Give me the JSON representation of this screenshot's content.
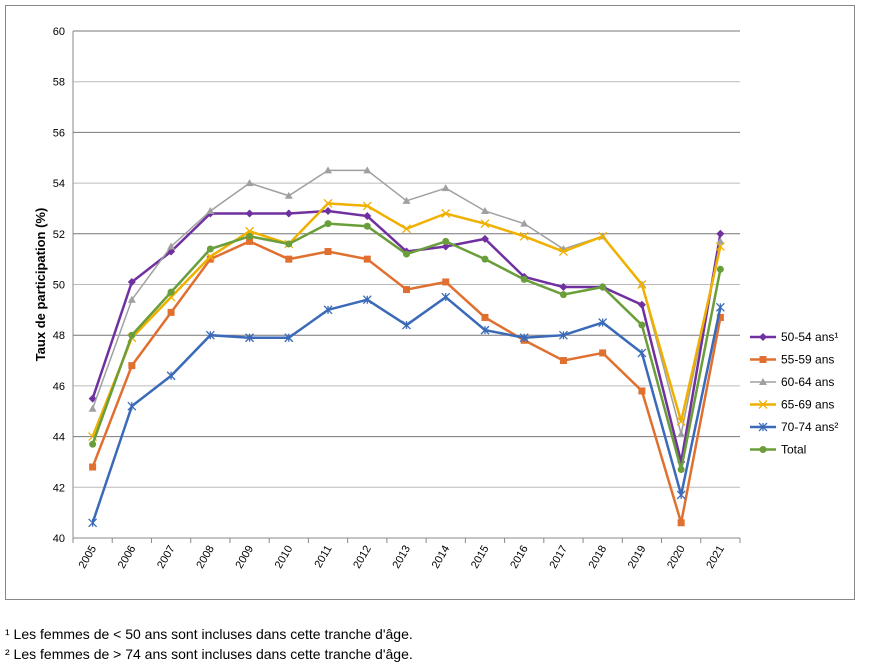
{
  "chart_data": {
    "type": "line",
    "title": "",
    "xlabel": "",
    "ylabel": "Taux de participation (%)",
    "ylim": [
      40,
      60
    ],
    "ytick_step": 2,
    "grid": "horizontal",
    "legend_position": "right",
    "categories": [
      "2005",
      "2006",
      "2007",
      "2008",
      "2009",
      "2010",
      "2011",
      "2012",
      "2013",
      "2014",
      "2015",
      "2016",
      "2017",
      "2018",
      "2019",
      "2020",
      "2021"
    ],
    "series": [
      {
        "name": "50-54 ans¹",
        "color": "#7030a0",
        "marker": "diamond",
        "values": [
          45.5,
          50.1,
          51.3,
          52.8,
          52.8,
          52.8,
          52.9,
          52.7,
          51.3,
          51.5,
          51.8,
          50.3,
          49.9,
          49.9,
          49.2,
          43.0,
          52.0
        ]
      },
      {
        "name": "55-59 ans",
        "color": "#e07030",
        "marker": "square",
        "values": [
          42.8,
          46.8,
          48.9,
          51.0,
          51.7,
          51.0,
          51.3,
          51.0,
          49.8,
          50.1,
          48.7,
          47.8,
          47.0,
          47.3,
          45.8,
          40.6,
          48.7
        ]
      },
      {
        "name": "60-64 ans",
        "color": "#a0a0a0",
        "marker": "triangle",
        "values": [
          45.1,
          49.4,
          51.5,
          52.9,
          54.0,
          53.5,
          54.5,
          54.5,
          53.3,
          53.8,
          52.9,
          52.4,
          51.4,
          51.9,
          50.0,
          44.1,
          51.7
        ]
      },
      {
        "name": "65-69 ans",
        "color": "#f0b000",
        "marker": "x",
        "values": [
          44.0,
          47.9,
          49.5,
          51.1,
          52.1,
          51.6,
          53.2,
          53.1,
          52.2,
          52.8,
          52.4,
          51.9,
          51.3,
          51.9,
          50.0,
          44.6,
          51.5
        ]
      },
      {
        "name": "70-74 ans²",
        "color": "#3a6ab8",
        "marker": "star",
        "values": [
          40.6,
          45.2,
          46.4,
          48.0,
          47.9,
          47.9,
          49.0,
          49.4,
          48.4,
          49.5,
          48.2,
          47.9,
          48.0,
          48.5,
          47.3,
          41.7,
          49.1
        ]
      },
      {
        "name": "Total",
        "color": "#6a9e3a",
        "marker": "circle",
        "values": [
          43.7,
          48.0,
          49.7,
          51.4,
          51.9,
          51.6,
          52.4,
          52.3,
          51.2,
          51.7,
          51.0,
          50.2,
          49.6,
          49.9,
          48.4,
          42.7,
          50.6
        ]
      }
    ]
  },
  "footnotes": [
    "¹ Les femmes de < 50 ans sont incluses dans cette tranche d'âge.",
    "² Les femmes de > 74 ans sont incluses dans cette tranche d'âge."
  ]
}
